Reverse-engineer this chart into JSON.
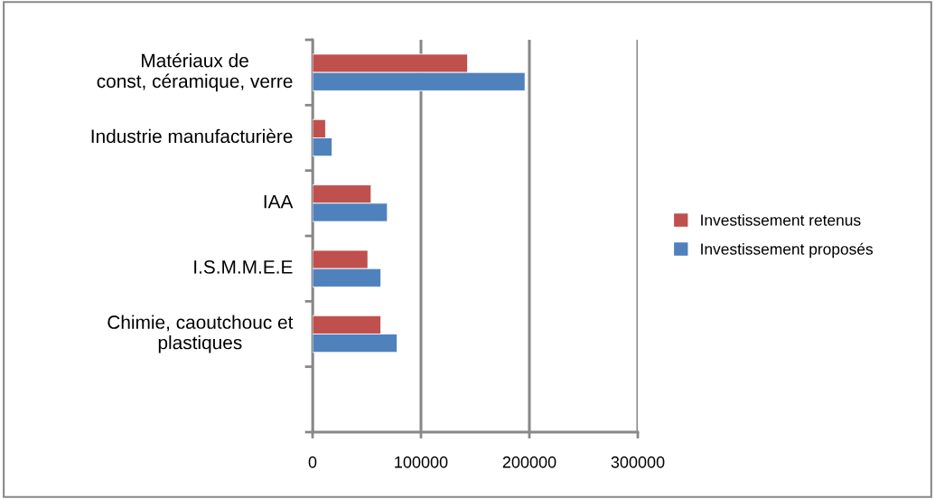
{
  "chart_data": {
    "type": "bar",
    "orientation": "horizontal",
    "categories": [
      "Matériaux de\nconst, céramique, verre",
      "Industrie manufacturière",
      "IAA",
      "I.S.M.M.E.E",
      "Chimie, caoutchouc et\nplastiques",
      null
    ],
    "series": [
      {
        "name": "Investissement retenus",
        "color": "#c0504d",
        "values": [
          143000,
          12000,
          54000,
          51000,
          63000,
          null
        ]
      },
      {
        "name": "Investissement proposés",
        "color": "#4f81bd",
        "values": [
          196000,
          18000,
          69000,
          63000,
          78000,
          null
        ]
      }
    ],
    "xlim": [
      0,
      300000
    ],
    "xticks": [
      0,
      100000,
      200000,
      300000
    ],
    "grid": "x",
    "legend": "right"
  }
}
